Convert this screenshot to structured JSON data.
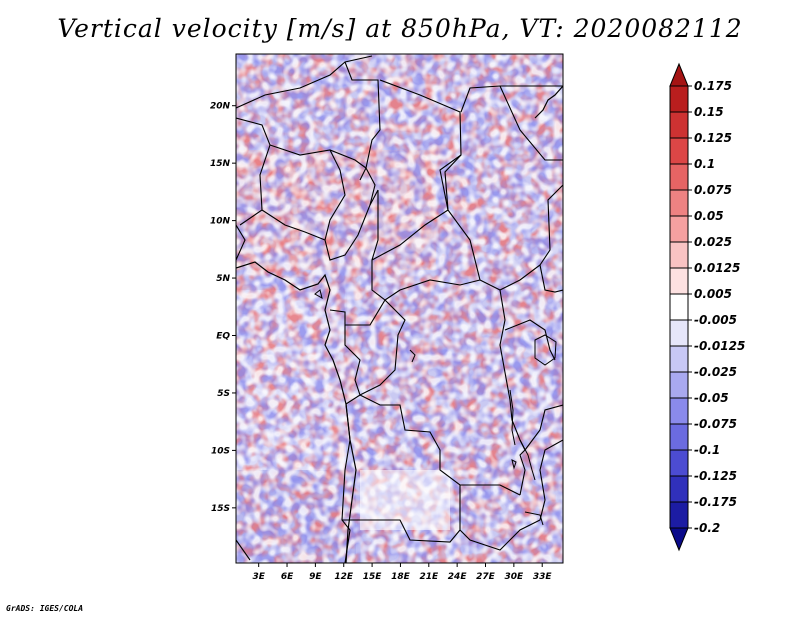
{
  "chart_data": {
    "type": "heatmap",
    "title": "Vertical velocity [m/s] at 850hPa, VT: 2020082112",
    "variable": "Vertical velocity",
    "units": "m/s",
    "level": "850hPa",
    "valid_time": "2020082112",
    "x_ticks": [
      "3E",
      "6E",
      "9E",
      "12E",
      "15E",
      "18E",
      "21E",
      "24E",
      "27E",
      "30E",
      "33E"
    ],
    "x_values": [
      3,
      6,
      9,
      12,
      15,
      18,
      21,
      24,
      27,
      30,
      33
    ],
    "xlim": [
      0.6,
      35.2
    ],
    "y_ticks": [
      "20N",
      "15N",
      "10N",
      "5N",
      "EQ",
      "5S",
      "10S",
      "15S"
    ],
    "y_values": [
      20,
      15,
      10,
      5,
      0,
      -5,
      -10,
      -15
    ],
    "ylim": [
      -19.8,
      24.5
    ],
    "colorbar": {
      "labels": [
        "0.175",
        "0.15",
        "0.125",
        "0.1",
        "0.075",
        "0.05",
        "0.025",
        "0.0125",
        "0.005",
        "-0.005",
        "-0.0125",
        "-0.025",
        "-0.05",
        "-0.075",
        "-0.1",
        "-0.125",
        "-0.175",
        "-0.2"
      ],
      "colors": [
        "#a51414",
        "#b91e1e",
        "#cd3232",
        "#dc4646",
        "#e66464",
        "#ee8282",
        "#f5a0a0",
        "#f9c3c3",
        "#fde1e1",
        "#ffffff",
        "#e6e6fa",
        "#c8c8f5",
        "#a9a9f0",
        "#8a8aeb",
        "#6b6be0",
        "#4c4cd2",
        "#3030bb",
        "#1c1ca3",
        "#0a0a8a"
      ]
    }
  },
  "footer": "GrADS: IGES/COLA"
}
